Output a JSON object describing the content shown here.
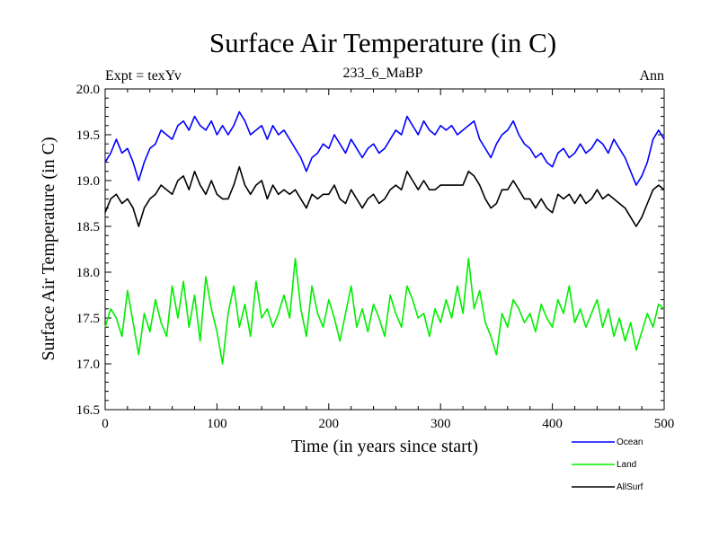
{
  "chart_data": {
    "type": "line",
    "title": "Surface Air Temperature (in C)",
    "subtitle_left": "Expt = texYv",
    "subtitle_center": "233_6_MaBP",
    "subtitle_right": "Ann",
    "xlabel": "Time (in years since start)",
    "ylabel": "Surface Air Temperature (in C)",
    "xlim": [
      0,
      500
    ],
    "ylim": [
      16.5,
      20.0
    ],
    "x_ticks": [
      0,
      100,
      200,
      300,
      400,
      500
    ],
    "x_tick_labels": [
      "0",
      "100",
      "200",
      "300",
      "400",
      "500"
    ],
    "y_ticks": [
      16.5,
      17.0,
      17.5,
      18.0,
      18.5,
      19.0,
      19.5,
      20.0
    ],
    "y_tick_labels": [
      "16.5",
      "17.0",
      "17.5",
      "18.0",
      "18.5",
      "19.0",
      "19.5",
      "20.0"
    ],
    "grid": false,
    "legend_position": "bottom-right",
    "x": [
      0,
      5,
      10,
      15,
      20,
      25,
      30,
      35,
      40,
      45,
      50,
      55,
      60,
      65,
      70,
      75,
      80,
      85,
      90,
      95,
      100,
      105,
      110,
      115,
      120,
      125,
      130,
      135,
      140,
      145,
      150,
      155,
      160,
      165,
      170,
      175,
      180,
      185,
      190,
      195,
      200,
      205,
      210,
      215,
      220,
      225,
      230,
      235,
      240,
      245,
      250,
      255,
      260,
      265,
      270,
      275,
      280,
      285,
      290,
      295,
      300,
      305,
      310,
      315,
      320,
      325,
      330,
      335,
      340,
      345,
      350,
      355,
      360,
      365,
      370,
      375,
      380,
      385,
      390,
      395,
      400,
      405,
      410,
      415,
      420,
      425,
      430,
      435,
      440,
      445,
      450,
      455,
      460,
      465,
      470,
      475,
      480,
      485,
      490,
      495,
      500
    ],
    "series": [
      {
        "name": "Ocean",
        "color": "#0000ff",
        "values": [
          19.2,
          19.3,
          19.45,
          19.3,
          19.35,
          19.2,
          19.0,
          19.2,
          19.35,
          19.4,
          19.55,
          19.5,
          19.45,
          19.6,
          19.65,
          19.55,
          19.7,
          19.6,
          19.55,
          19.65,
          19.5,
          19.6,
          19.5,
          19.6,
          19.75,
          19.65,
          19.5,
          19.55,
          19.6,
          19.45,
          19.6,
          19.5,
          19.55,
          19.45,
          19.35,
          19.25,
          19.1,
          19.25,
          19.3,
          19.4,
          19.35,
          19.5,
          19.4,
          19.3,
          19.45,
          19.35,
          19.25,
          19.35,
          19.4,
          19.3,
          19.35,
          19.45,
          19.55,
          19.5,
          19.7,
          19.6,
          19.5,
          19.65,
          19.55,
          19.5,
          19.6,
          19.55,
          19.6,
          19.5,
          19.55,
          19.6,
          19.65,
          19.45,
          19.35,
          19.25,
          19.4,
          19.5,
          19.55,
          19.65,
          19.5,
          19.4,
          19.35,
          19.25,
          19.3,
          19.2,
          19.15,
          19.3,
          19.35,
          19.25,
          19.3,
          19.4,
          19.3,
          19.35,
          19.45,
          19.4,
          19.3,
          19.45,
          19.35,
          19.25,
          19.1,
          18.95,
          19.05,
          19.2,
          19.45,
          19.55,
          19.45
        ]
      },
      {
        "name": "Land",
        "color": "#00ee00",
        "values": [
          17.4,
          17.6,
          17.5,
          17.3,
          17.8,
          17.45,
          17.1,
          17.55,
          17.35,
          17.7,
          17.45,
          17.3,
          17.85,
          17.5,
          17.9,
          17.4,
          17.75,
          17.25,
          17.95,
          17.6,
          17.35,
          17.0,
          17.55,
          17.85,
          17.4,
          17.65,
          17.3,
          17.9,
          17.5,
          17.6,
          17.4,
          17.55,
          17.75,
          17.5,
          18.15,
          17.6,
          17.3,
          17.85,
          17.55,
          17.4,
          17.7,
          17.5,
          17.25,
          17.55,
          17.85,
          17.4,
          17.6,
          17.35,
          17.65,
          17.5,
          17.3,
          17.75,
          17.55,
          17.4,
          17.85,
          17.7,
          17.5,
          17.55,
          17.3,
          17.6,
          17.45,
          17.7,
          17.5,
          17.85,
          17.55,
          18.15,
          17.6,
          17.8,
          17.45,
          17.3,
          17.1,
          17.55,
          17.4,
          17.7,
          17.6,
          17.45,
          17.55,
          17.35,
          17.65,
          17.5,
          17.4,
          17.7,
          17.55,
          17.85,
          17.45,
          17.6,
          17.4,
          17.55,
          17.7,
          17.4,
          17.6,
          17.3,
          17.5,
          17.25,
          17.45,
          17.15,
          17.35,
          17.55,
          17.4,
          17.65,
          17.6
        ]
      },
      {
        "name": "AllSurf",
        "color": "#000000",
        "values": [
          18.65,
          18.8,
          18.85,
          18.75,
          18.8,
          18.7,
          18.5,
          18.7,
          18.8,
          18.85,
          18.95,
          18.9,
          18.85,
          19.0,
          19.05,
          18.9,
          19.1,
          18.95,
          18.85,
          19.0,
          18.85,
          18.8,
          18.8,
          18.95,
          19.15,
          18.95,
          18.85,
          18.95,
          19.0,
          18.8,
          18.95,
          18.85,
          18.9,
          18.85,
          18.9,
          18.8,
          18.7,
          18.85,
          18.8,
          18.85,
          18.85,
          18.95,
          18.8,
          18.75,
          18.9,
          18.8,
          18.7,
          18.8,
          18.85,
          18.75,
          18.8,
          18.9,
          18.95,
          18.9,
          19.1,
          19.0,
          18.9,
          19.0,
          18.9,
          18.9,
          18.95,
          18.95,
          18.95,
          18.95,
          18.95,
          19.1,
          19.05,
          18.95,
          18.8,
          18.7,
          18.75,
          18.9,
          18.9,
          19.0,
          18.9,
          18.8,
          18.8,
          18.7,
          18.8,
          18.7,
          18.65,
          18.85,
          18.8,
          18.85,
          18.75,
          18.85,
          18.75,
          18.8,
          18.9,
          18.8,
          18.85,
          18.8,
          18.75,
          18.7,
          18.6,
          18.5,
          18.6,
          18.75,
          18.9,
          18.95,
          18.9
        ]
      }
    ]
  }
}
